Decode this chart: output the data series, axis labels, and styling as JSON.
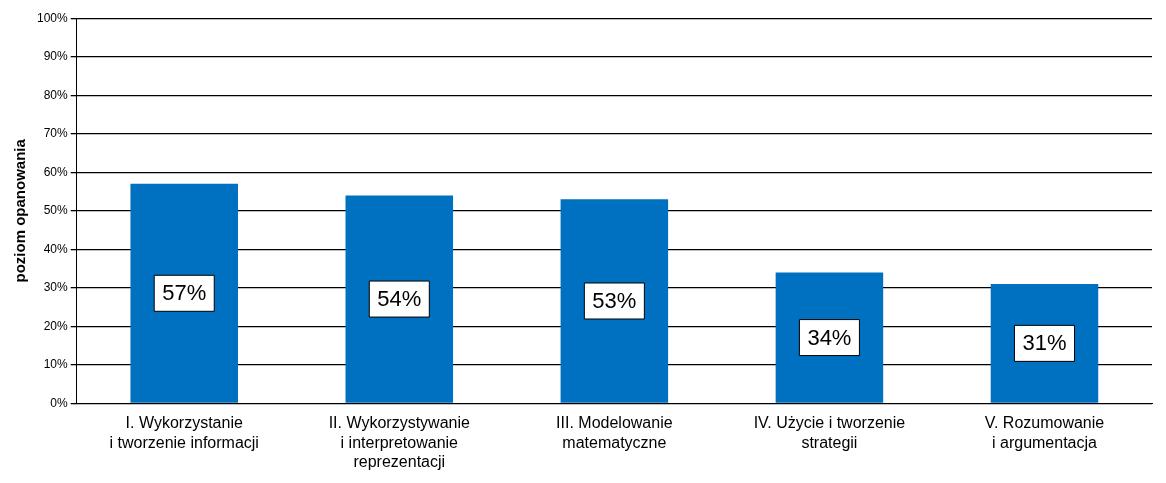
{
  "chart_data": {
    "type": "bar",
    "ylabel": "poziom opanowania",
    "categories": [
      "I. Wykorzystanie\ni tworzenie informacji",
      "II. Wykorzystywanie\ni interpretowanie\nreprezentacji",
      "III. Modelowanie\nmatematyczne",
      "IV. Użycie i tworzenie\nstrategii",
      "V. Rozumowanie\ni argumentacja"
    ],
    "values": [
      57,
      54,
      53,
      34,
      31
    ],
    "color": "#0070c0",
    "value_labels": [
      "57%",
      "54%",
      "53%",
      "34%",
      "31%"
    ],
    "ylim": [
      0,
      100
    ],
    "yticks": [
      {
        "value": 0,
        "label": "0%"
      },
      {
        "value": 10,
        "label": "10%"
      },
      {
        "value": 20,
        "label": "20%"
      },
      {
        "value": 30,
        "label": "30%"
      },
      {
        "value": 40,
        "label": "40%"
      },
      {
        "value": 50,
        "label": "50%"
      },
      {
        "value": 60,
        "label": "60%"
      },
      {
        "value": 70,
        "label": "70%"
      },
      {
        "value": 80,
        "label": "80%"
      },
      {
        "value": 90,
        "label": "90%"
      },
      {
        "value": 100,
        "label": "100%"
      }
    ],
    "grid": "y",
    "legend": false
  }
}
